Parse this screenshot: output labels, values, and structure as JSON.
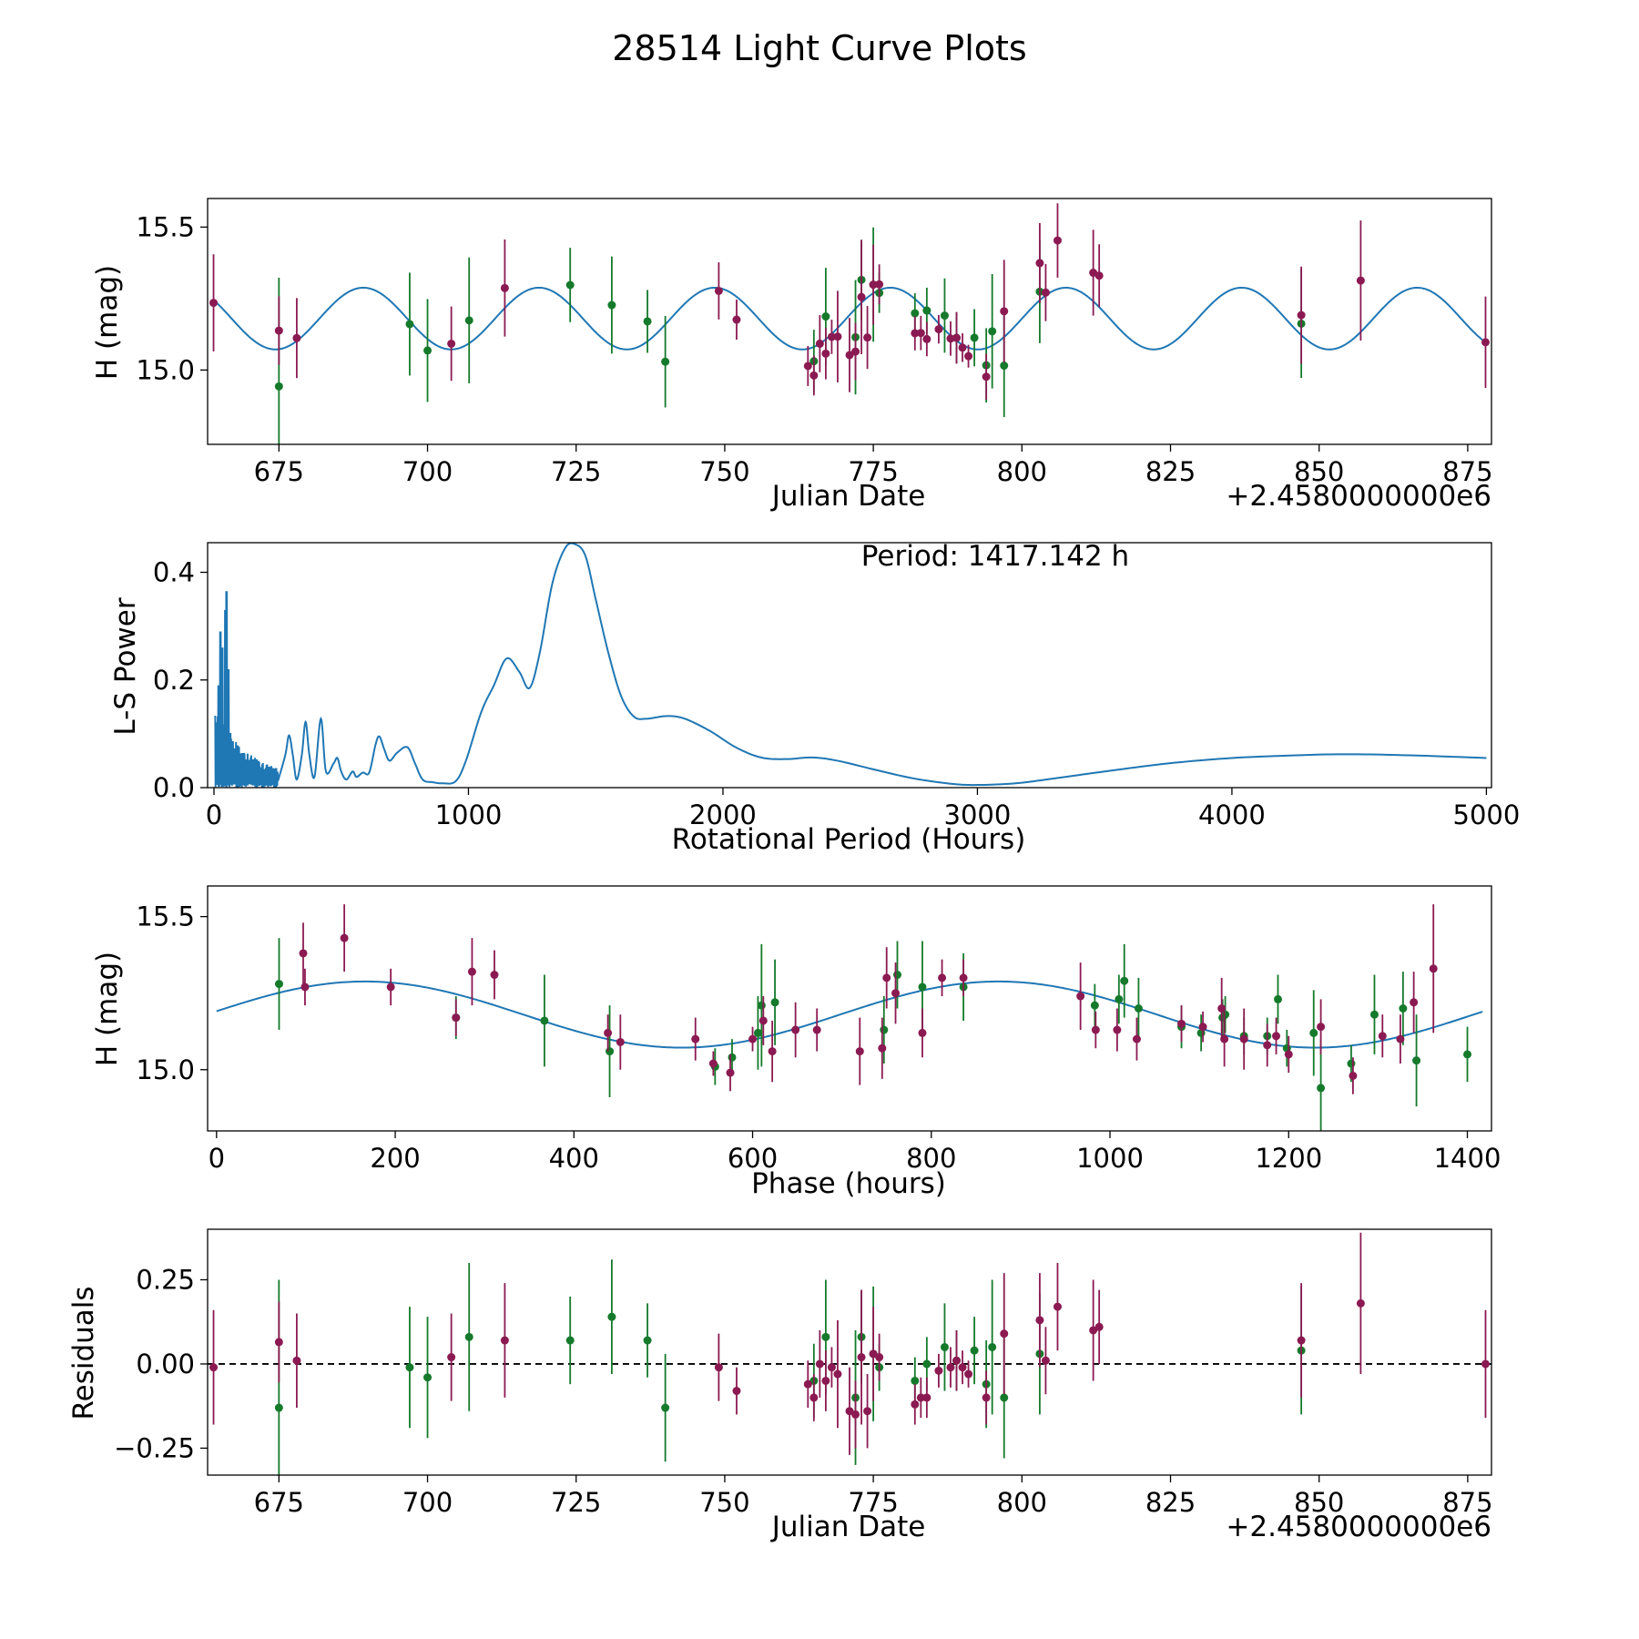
{
  "figure_title": "28514 Light Curve Plots",
  "colors": {
    "curve": "#1f77b4",
    "red": "#8b1a52",
    "green": "#157a2b",
    "axis": "#000000",
    "dash": "#000000"
  },
  "chart_data": [
    {
      "type": "scatter",
      "name": "lightcurve",
      "xlabel": "Julian Date",
      "ylabel": "H (mag)",
      "offset_text": "+2.4580000000e6",
      "xlim": [
        663,
        879
      ],
      "ylim": [
        14.74,
        15.6
      ],
      "xticks": [
        675,
        700,
        725,
        750,
        775,
        800,
        825,
        850,
        875
      ],
      "xtick_labels": [
        "675",
        "700",
        "725",
        "750",
        "775",
        "800",
        "825",
        "850",
        "875"
      ],
      "yticks": [
        15.0,
        15.5
      ],
      "ytick_labels": [
        "15.0",
        "15.5"
      ],
      "model": {
        "kind": "sine",
        "mean": 15.18,
        "amp": 0.108,
        "period_days": 29.55,
        "peak_x": 689.2,
        "x_range": [
          664,
          878
        ]
      }
    },
    {
      "type": "line",
      "name": "periodogram",
      "xlabel": "Rotational Period (Hours)",
      "ylabel": "L-S Power",
      "annotation": "Period: 1417.142 h",
      "xlim": [
        -25,
        5020
      ],
      "ylim": [
        0,
        0.455
      ],
      "xticks": [
        0,
        1000,
        2000,
        3000,
        4000,
        5000
      ],
      "xtick_labels": [
        "0",
        "1000",
        "2000",
        "3000",
        "4000",
        "5000"
      ],
      "yticks": [
        0.0,
        0.2,
        0.4
      ],
      "ytick_labels": [
        "0.0",
        "0.2",
        "0.4"
      ],
      "anchors": [
        [
          250,
          0.01
        ],
        [
          280,
          0.06
        ],
        [
          295,
          0.097
        ],
        [
          310,
          0.06
        ],
        [
          325,
          0.015
        ],
        [
          345,
          0.06
        ],
        [
          360,
          0.122
        ],
        [
          375,
          0.06
        ],
        [
          395,
          0.02
        ],
        [
          420,
          0.128
        ],
        [
          440,
          0.03
        ],
        [
          470,
          0.045
        ],
        [
          485,
          0.055
        ],
        [
          500,
          0.03
        ],
        [
          520,
          0.015
        ],
        [
          545,
          0.03
        ],
        [
          560,
          0.02
        ],
        [
          585,
          0.028
        ],
        [
          610,
          0.028
        ],
        [
          635,
          0.08
        ],
        [
          650,
          0.095
        ],
        [
          670,
          0.07
        ],
        [
          690,
          0.05
        ],
        [
          720,
          0.065
        ],
        [
          760,
          0.075
        ],
        [
          790,
          0.045
        ],
        [
          820,
          0.015
        ],
        [
          860,
          0.01
        ],
        [
          900,
          0.008
        ],
        [
          950,
          0.012
        ],
        [
          990,
          0.05
        ],
        [
          1050,
          0.14
        ],
        [
          1100,
          0.19
        ],
        [
          1150,
          0.24
        ],
        [
          1200,
          0.215
        ],
        [
          1240,
          0.185
        ],
        [
          1280,
          0.25
        ],
        [
          1330,
          0.38
        ],
        [
          1380,
          0.445
        ],
        [
          1420,
          0.452
        ],
        [
          1460,
          0.43
        ],
        [
          1500,
          0.35
        ],
        [
          1550,
          0.25
        ],
        [
          1600,
          0.17
        ],
        [
          1650,
          0.132
        ],
        [
          1700,
          0.128
        ],
        [
          1780,
          0.133
        ],
        [
          1850,
          0.128
        ],
        [
          1950,
          0.105
        ],
        [
          2050,
          0.075
        ],
        [
          2150,
          0.056
        ],
        [
          2250,
          0.053
        ],
        [
          2350,
          0.056
        ],
        [
          2450,
          0.05
        ],
        [
          2600,
          0.033
        ],
        [
          2750,
          0.017
        ],
        [
          2900,
          0.007
        ],
        [
          3000,
          0.005
        ],
        [
          3150,
          0.008
        ],
        [
          3300,
          0.017
        ],
        [
          3500,
          0.03
        ],
        [
          3750,
          0.045
        ],
        [
          4000,
          0.055
        ],
        [
          4250,
          0.06
        ],
        [
          4450,
          0.062
        ],
        [
          4700,
          0.06
        ],
        [
          5000,
          0.055
        ]
      ]
    },
    {
      "type": "scatter",
      "name": "phased",
      "xlabel": "Phase (hours)",
      "ylabel": "H (mag)",
      "xlim": [
        -10,
        1427
      ],
      "ylim": [
        14.8,
        15.6
      ],
      "xticks": [
        0,
        200,
        400,
        600,
        800,
        1000,
        1200,
        1400
      ],
      "xtick_labels": [
        "0",
        "200",
        "400",
        "600",
        "800",
        "1000",
        "1200",
        "1400"
      ],
      "yticks": [
        15.0,
        15.5
      ],
      "ytick_labels": [
        "15.0",
        "15.5"
      ],
      "model": {
        "kind": "sine",
        "mean": 15.18,
        "amp": 0.108,
        "period": 709.2,
        "peak_x": 166,
        "x_range": [
          0,
          1417
        ]
      },
      "points_red": [
        [
          97,
          15.38,
          0.1
        ],
        [
          99,
          15.27,
          0.06
        ],
        [
          143,
          15.43,
          0.11
        ],
        [
          195,
          15.27,
          0.06
        ],
        [
          268,
          15.17,
          0.06
        ],
        [
          286,
          15.32,
          0.11
        ],
        [
          311,
          15.31,
          0.08
        ],
        [
          438,
          15.12,
          0.06
        ],
        [
          452,
          15.09,
          0.09
        ],
        [
          536,
          15.1,
          0.07
        ],
        [
          556,
          15.02,
          0.04
        ],
        [
          575,
          14.99,
          0.06
        ],
        [
          600,
          15.1,
          0.04
        ],
        [
          612,
          15.16,
          0.08
        ],
        [
          622,
          15.06,
          0.1
        ],
        [
          648,
          15.13,
          0.09
        ],
        [
          672,
          15.13,
          0.07
        ],
        [
          720,
          15.06,
          0.11
        ],
        [
          745,
          15.07,
          0.1
        ],
        [
          750,
          15.3,
          0.1
        ],
        [
          760,
          15.25,
          0.1
        ],
        [
          790,
          15.12,
          0.08
        ],
        [
          812,
          15.3,
          0.06
        ],
        [
          836,
          15.3,
          0.06
        ],
        [
          967,
          15.24,
          0.11
        ],
        [
          984,
          15.13,
          0.06
        ],
        [
          1008,
          15.13,
          0.07
        ],
        [
          1030,
          15.1,
          0.07
        ],
        [
          1080,
          15.15,
          0.06
        ],
        [
          1104,
          15.14,
          0.05
        ],
        [
          1125,
          15.2,
          0.1
        ],
        [
          1128,
          15.1,
          0.09
        ],
        [
          1150,
          15.1,
          0.1
        ],
        [
          1176,
          15.08,
          0.07
        ],
        [
          1186,
          15.11,
          0.06
        ],
        [
          1200,
          15.05,
          0.06
        ],
        [
          1236,
          15.14,
          0.09
        ],
        [
          1272,
          14.98,
          0.06
        ],
        [
          1305,
          15.11,
          0.07
        ],
        [
          1325,
          15.1,
          0.08
        ],
        [
          1340,
          15.22,
          0.1
        ],
        [
          1362,
          15.33,
          0.21
        ]
      ],
      "points_green": [
        [
          70,
          15.28,
          0.15
        ],
        [
          268,
          15.17,
          0.07
        ],
        [
          367,
          15.16,
          0.15
        ],
        [
          440,
          15.06,
          0.15
        ],
        [
          558,
          15.01,
          0.06
        ],
        [
          577,
          15.04,
          0.06
        ],
        [
          606,
          15.12,
          0.12
        ],
        [
          610,
          15.21,
          0.2
        ],
        [
          625,
          15.22,
          0.14
        ],
        [
          747,
          15.13,
          0.11
        ],
        [
          762,
          15.31,
          0.11
        ],
        [
          790,
          15.27,
          0.15
        ],
        [
          836,
          15.27,
          0.11
        ],
        [
          983,
          15.21,
          0.07
        ],
        [
          1010,
          15.23,
          0.08
        ],
        [
          1016,
          15.29,
          0.12
        ],
        [
          1032,
          15.2,
          0.1
        ],
        [
          1080,
          15.14,
          0.07
        ],
        [
          1102,
          15.12,
          0.06
        ],
        [
          1126,
          15.17,
          0.06
        ],
        [
          1129,
          15.18,
          0.06
        ],
        [
          1150,
          15.11,
          0.06
        ],
        [
          1176,
          15.11,
          0.06
        ],
        [
          1188,
          15.23,
          0.08
        ],
        [
          1198,
          15.07,
          0.06
        ],
        [
          1228,
          15.12,
          0.14
        ],
        [
          1236,
          14.94,
          0.16
        ],
        [
          1270,
          15.02,
          0.06
        ],
        [
          1296,
          15.18,
          0.13
        ],
        [
          1328,
          15.2,
          0.12
        ],
        [
          1343,
          15.03,
          0.15
        ],
        [
          1400,
          15.05,
          0.09
        ]
      ]
    },
    {
      "type": "scatter",
      "name": "residuals",
      "xlabel": "Julian Date",
      "ylabel": "Residuals",
      "offset_text": "+2.4580000000e6",
      "xlim": [
        663,
        879
      ],
      "ylim": [
        -0.33,
        0.4
      ],
      "xticks": [
        675,
        700,
        725,
        750,
        775,
        800,
        825,
        850,
        875
      ],
      "xtick_labels": [
        "675",
        "700",
        "725",
        "750",
        "775",
        "800",
        "825",
        "850",
        "875"
      ],
      "yticks": [
        0.25,
        0.0,
        -0.25
      ],
      "ytick_labels": [
        "0.25",
        "0.00",
        "−0.25"
      ],
      "zero_line": 0.0,
      "points_red": [
        [
          664,
          -0.01,
          0.17
        ],
        [
          675,
          0.065,
          0.12
        ],
        [
          678,
          0.01,
          0.14
        ],
        [
          704,
          0.02,
          0.13
        ],
        [
          713,
          0.07,
          0.17
        ],
        [
          749,
          -0.01,
          0.1
        ],
        [
          752,
          -0.08,
          0.07
        ],
        [
          764,
          -0.06,
          0.07
        ],
        [
          765,
          -0.1,
          0.07
        ],
        [
          766,
          0,
          0.1
        ],
        [
          767,
          -0.05,
          0.09
        ],
        [
          768,
          -0.01,
          0.06
        ],
        [
          769,
          -0.03,
          0.16
        ],
        [
          771,
          -0.14,
          0.13
        ],
        [
          772,
          -0.15,
          0.1
        ],
        [
          773,
          0.02,
          0.2
        ],
        [
          774,
          -0.14,
          0.11
        ],
        [
          775,
          0.03,
          0.14
        ],
        [
          776,
          0.02,
          0.07
        ],
        [
          782,
          -0.12,
          0.06
        ],
        [
          783,
          -0.1,
          0.06
        ],
        [
          784,
          -0.1,
          0.06
        ],
        [
          786,
          -0.02,
          0.05
        ],
        [
          788,
          -0.01,
          0.06
        ],
        [
          789,
          0.01,
          0.09
        ],
        [
          790,
          -0.01,
          0.05
        ],
        [
          791,
          -0.03,
          0.04
        ],
        [
          794,
          -0.1,
          0.08
        ],
        [
          797,
          0.09,
          0.18
        ],
        [
          803,
          0.13,
          0.14
        ],
        [
          804,
          0.01,
          0.1
        ],
        [
          806,
          0.17,
          0.13
        ],
        [
          812,
          0.1,
          0.15
        ],
        [
          813,
          0.11,
          0.11
        ],
        [
          847,
          0.07,
          0.17
        ],
        [
          857,
          0.18,
          0.21
        ],
        [
          878,
          0,
          0.16
        ]
      ],
      "points_green": [
        [
          675,
          -0.13,
          0.38
        ],
        [
          697,
          -0.01,
          0.18
        ],
        [
          700,
          -0.04,
          0.18
        ],
        [
          707,
          0.08,
          0.22
        ],
        [
          724,
          0.07,
          0.13
        ],
        [
          731,
          0.14,
          0.17
        ],
        [
          737,
          0.07,
          0.11
        ],
        [
          740,
          -0.13,
          0.16
        ],
        [
          765,
          -0.05,
          0.11
        ],
        [
          767,
          0.08,
          0.17
        ],
        [
          772,
          -0.1,
          0.2
        ],
        [
          773,
          0.08,
          0.14
        ],
        [
          775,
          0.03,
          0.2
        ],
        [
          776,
          -0.01,
          0.07
        ],
        [
          782,
          -0.05,
          0.07
        ],
        [
          784,
          0,
          0.08
        ],
        [
          787,
          0.05,
          0.13
        ],
        [
          789,
          0.01,
          0.09
        ],
        [
          792,
          0.04,
          0.1
        ],
        [
          794,
          -0.06,
          0.13
        ],
        [
          795,
          0.05,
          0.2
        ],
        [
          797,
          -0.1,
          0.18
        ],
        [
          803,
          0.03,
          0.18
        ],
        [
          847,
          0.04,
          0.19
        ]
      ]
    }
  ]
}
